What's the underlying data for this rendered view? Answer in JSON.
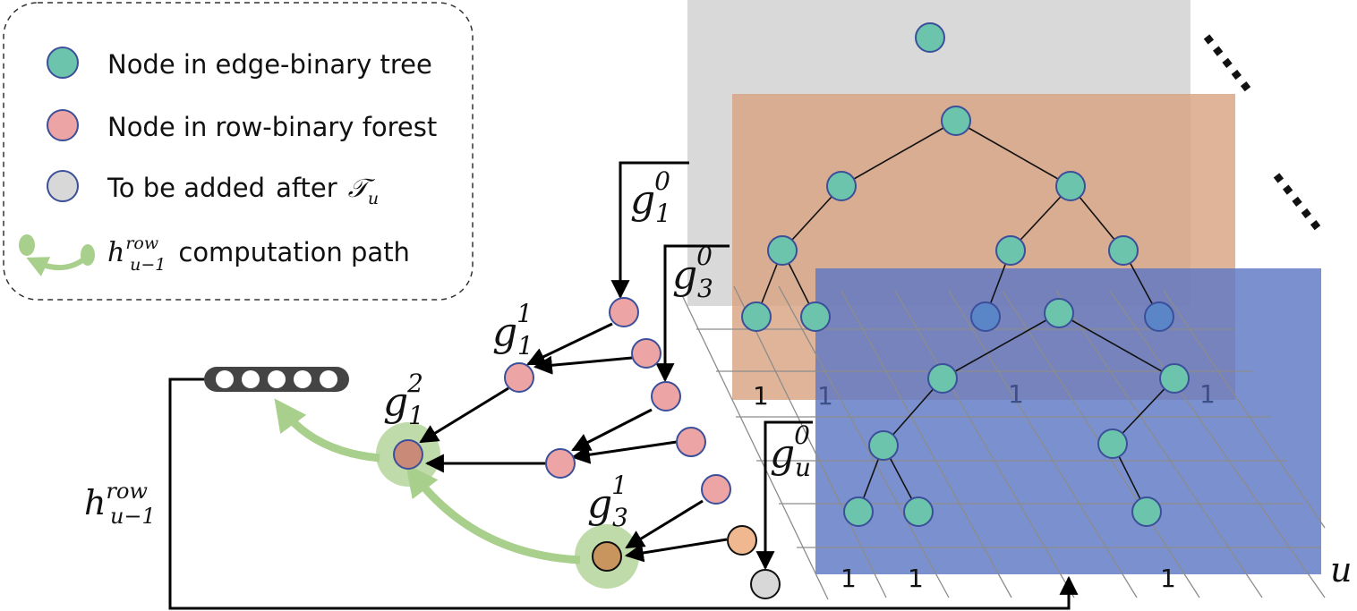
{
  "legend": {
    "items": [
      {
        "label": "Node in edge-binary tree",
        "color": "#6cc4ad"
      },
      {
        "label": "Node in row-binary forest",
        "color": "#eda4a4"
      },
      {
        "label": "To be added",
        "suffix": "after",
        "math_symbol": "𝒯",
        "math_sub": "u",
        "color": "#d8d8d8"
      },
      {
        "math_main": "h",
        "math_sup": "row",
        "math_sub": "u−1",
        "label": "computation path",
        "color": "#a9cf8c"
      }
    ]
  },
  "math_labels": {
    "g1_0": {
      "base": "g",
      "sub": "1",
      "sup": "0"
    },
    "g3_0": {
      "base": "g",
      "sub": "3",
      "sup": "0"
    },
    "g1_1": {
      "base": "g",
      "sub": "1",
      "sup": "1"
    },
    "g1_2": {
      "base": "g",
      "sub": "1",
      "sup": "2"
    },
    "g3_1": {
      "base": "g",
      "sub": "3",
      "sup": "1"
    },
    "gu_0": {
      "base": "g",
      "sub": "u",
      "sup": "0"
    },
    "h_row": {
      "base": "h",
      "sub": "u−1",
      "sup": "row"
    }
  },
  "matrix": {
    "axis_label": "u",
    "grid_ones": {
      "orange": [
        "1",
        "1",
        "1",
        "1"
      ],
      "blue": [
        "1",
        "1",
        "1"
      ]
    }
  },
  "ellipsis": ".....",
  "colors": {
    "edge_node": "#6cc4ad",
    "row_node": "#eda4a4",
    "pending_node": "#d8d8d8",
    "path": "#a9cf8c",
    "layer_gray": "#d9d9d9",
    "layer_orange": "#d9a382",
    "layer_blue": "#6b83c8"
  }
}
